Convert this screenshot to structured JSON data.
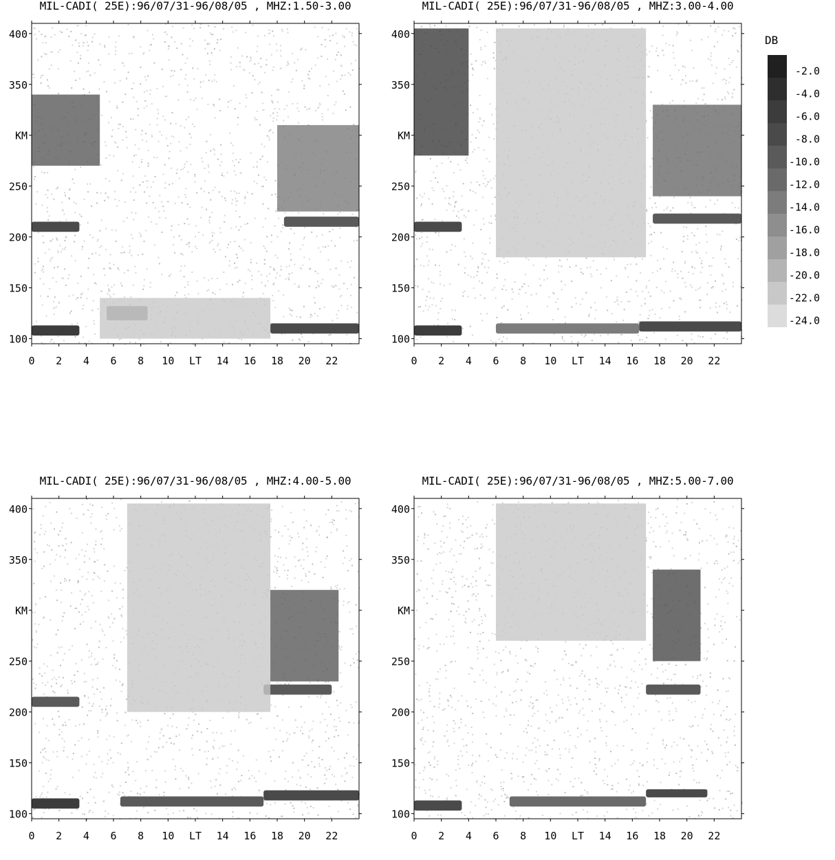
{
  "panels": [
    {
      "title": "MIL-CADI( 25E):96/07/31-96/08/05 , MHZ:1.50-3.00"
    },
    {
      "title": "MIL-CADI( 25E):96/07/31-96/08/05 , MHZ:3.00-4.00"
    },
    {
      "title": "MIL-CADI( 25E):96/07/31-96/08/05 , MHZ:4.00-5.00"
    },
    {
      "title": "MIL-CADI( 25E):96/07/31-96/08/05 , MHZ:5.00-7.00"
    }
  ],
  "legend": {
    "title": "DB",
    "levels": [
      "-2.0",
      "-4.0",
      "-6.0",
      "-8.0",
      "-10.0",
      "-12.0",
      "-14.0",
      "-16.0",
      "-18.0",
      "-20.0",
      "-22.0",
      "-24.0"
    ],
    "colors": [
      "#202020",
      "#2e2e2e",
      "#3c3c3c",
      "#4a4a4a",
      "#5a5a5a",
      "#6a6a6a",
      "#7c7c7c",
      "#8e8e8e",
      "#a0a0a0",
      "#b4b4b4",
      "#c8c8c8",
      "#dcdcdc"
    ]
  },
  "chart_data": [
    {
      "type": "heatmap",
      "title": "MIL-CADI( 25E):96/07/31-96/08/05 , MHZ:1.50-3.00",
      "xlabel": "LT",
      "ylabel": "KM",
      "xlim": [
        0,
        24
      ],
      "ylim": [
        95,
        410
      ],
      "x_ticks": [
        "0",
        "2",
        "4",
        "6",
        "8",
        "10",
        "LT",
        "14",
        "16",
        "18",
        "20",
        "22"
      ],
      "y_ticks": [
        "100",
        "150",
        "200",
        "250",
        "350",
        "400"
      ],
      "y_tick_values": [
        100,
        150,
        200,
        250,
        350,
        400
      ],
      "features": [
        {
          "kind": "layer",
          "lt_start": 0,
          "lt_end": 3.5,
          "km": 108,
          "thickness": 10,
          "db": -6
        },
        {
          "kind": "layer",
          "lt_start": 17.5,
          "lt_end": 24,
          "km": 110,
          "thickness": 10,
          "db": -8
        },
        {
          "kind": "layer",
          "lt_start": 5.5,
          "lt_end": 8.5,
          "km": 125,
          "thickness": 14,
          "db": -14
        },
        {
          "kind": "layer",
          "lt_start": 0,
          "lt_end": 3.5,
          "km": 210,
          "thickness": 10,
          "db": -8
        },
        {
          "kind": "layer",
          "lt_start": 18.5,
          "lt_end": 24,
          "km": 215,
          "thickness": 10,
          "db": -10
        },
        {
          "kind": "region",
          "lt_start": 0,
          "lt_end": 5,
          "km_low": 270,
          "km_high": 340,
          "db": -10
        },
        {
          "kind": "region",
          "lt_start": 18,
          "lt_end": 24,
          "km_low": 225,
          "km_high": 310,
          "db": -14
        },
        {
          "kind": "region",
          "lt_start": 5,
          "lt_end": 17.5,
          "km_low": 100,
          "km_high": 140,
          "db": -22
        }
      ]
    },
    {
      "type": "heatmap",
      "title": "MIL-CADI( 25E):96/07/31-96/08/05 , MHZ:3.00-4.00",
      "xlabel": "LT",
      "ylabel": "KM",
      "xlim": [
        0,
        24
      ],
      "ylim": [
        95,
        410
      ],
      "x_ticks": [
        "0",
        "2",
        "4",
        "6",
        "8",
        "10",
        "LT",
        "14",
        "16",
        "18",
        "20",
        "22"
      ],
      "y_ticks": [
        "100",
        "150",
        "200",
        "250",
        "350",
        "400"
      ],
      "y_tick_values": [
        100,
        150,
        200,
        250,
        350,
        400
      ],
      "features": [
        {
          "kind": "layer",
          "lt_start": 0,
          "lt_end": 3.5,
          "km": 108,
          "thickness": 10,
          "db": -6
        },
        {
          "kind": "layer",
          "lt_start": 6,
          "lt_end": 16.5,
          "km": 110,
          "thickness": 10,
          "db": -14
        },
        {
          "kind": "layer",
          "lt_start": 16.5,
          "lt_end": 24,
          "km": 112,
          "thickness": 10,
          "db": -8
        },
        {
          "kind": "layer",
          "lt_start": 0,
          "lt_end": 3.5,
          "km": 210,
          "thickness": 10,
          "db": -8
        },
        {
          "kind": "layer",
          "lt_start": 17.5,
          "lt_end": 24,
          "km": 218,
          "thickness": 10,
          "db": -10
        },
        {
          "kind": "region",
          "lt_start": 0,
          "lt_end": 4,
          "km_low": 280,
          "km_high": 405,
          "db": -6
        },
        {
          "kind": "region",
          "lt_start": 6,
          "lt_end": 17,
          "km_low": 180,
          "km_high": 405,
          "db": -22
        },
        {
          "kind": "region",
          "lt_start": 17.5,
          "lt_end": 24,
          "km_low": 240,
          "km_high": 330,
          "db": -12
        }
      ]
    },
    {
      "type": "heatmap",
      "title": "MIL-CADI( 25E):96/07/31-96/08/05 , MHZ:4.00-5.00",
      "xlabel": "LT",
      "ylabel": "KM",
      "xlim": [
        0,
        24
      ],
      "ylim": [
        95,
        410
      ],
      "x_ticks": [
        "0",
        "2",
        "4",
        "6",
        "8",
        "10",
        "LT",
        "14",
        "16",
        "18",
        "20",
        "22"
      ],
      "y_ticks": [
        "100",
        "150",
        "200",
        "250",
        "350",
        "400"
      ],
      "y_tick_values": [
        100,
        150,
        200,
        250,
        350,
        400
      ],
      "features": [
        {
          "kind": "layer",
          "lt_start": 0,
          "lt_end": 3.5,
          "km": 110,
          "thickness": 10,
          "db": -6
        },
        {
          "kind": "layer",
          "lt_start": 6.5,
          "lt_end": 17,
          "km": 112,
          "thickness": 10,
          "db": -10
        },
        {
          "kind": "layer",
          "lt_start": 17,
          "lt_end": 24,
          "km": 118,
          "thickness": 10,
          "db": -8
        },
        {
          "kind": "layer",
          "lt_start": 0,
          "lt_end": 3.5,
          "km": 210,
          "thickness": 10,
          "db": -10
        },
        {
          "kind": "layer",
          "lt_start": 17,
          "lt_end": 22,
          "km": 222,
          "thickness": 10,
          "db": -10
        },
        {
          "kind": "region",
          "lt_start": 7,
          "lt_end": 17.5,
          "km_low": 200,
          "km_high": 405,
          "db": -22
        },
        {
          "kind": "region",
          "lt_start": 17.5,
          "lt_end": 22.5,
          "km_low": 230,
          "km_high": 320,
          "db": -10
        }
      ]
    },
    {
      "type": "heatmap",
      "title": "MIL-CADI( 25E):96/07/31-96/08/05 , MHZ:5.00-7.00",
      "xlabel": "LT",
      "ylabel": "KM",
      "xlim": [
        0,
        24
      ],
      "ylim": [
        95,
        410
      ],
      "x_ticks": [
        "0",
        "2",
        "4",
        "6",
        "8",
        "10",
        "LT",
        "14",
        "16",
        "18",
        "20",
        "22"
      ],
      "y_ticks": [
        "100",
        "150",
        "200",
        "250",
        "350",
        "400"
      ],
      "y_tick_values": [
        100,
        150,
        200,
        250,
        350,
        400
      ],
      "features": [
        {
          "kind": "layer",
          "lt_start": 0,
          "lt_end": 3.5,
          "km": 108,
          "thickness": 10,
          "db": -8
        },
        {
          "kind": "layer",
          "lt_start": 7,
          "lt_end": 17,
          "km": 112,
          "thickness": 10,
          "db": -12
        },
        {
          "kind": "layer",
          "lt_start": 17,
          "lt_end": 21.5,
          "km": 120,
          "thickness": 8,
          "db": -8
        },
        {
          "kind": "layer",
          "lt_start": 17,
          "lt_end": 21,
          "km": 222,
          "thickness": 10,
          "db": -10
        },
        {
          "kind": "region",
          "lt_start": 6,
          "lt_end": 17,
          "km_low": 270,
          "km_high": 405,
          "db": -22
        },
        {
          "kind": "region",
          "lt_start": 17.5,
          "lt_end": 21,
          "km_low": 250,
          "km_high": 340,
          "db": -8
        }
      ]
    }
  ]
}
